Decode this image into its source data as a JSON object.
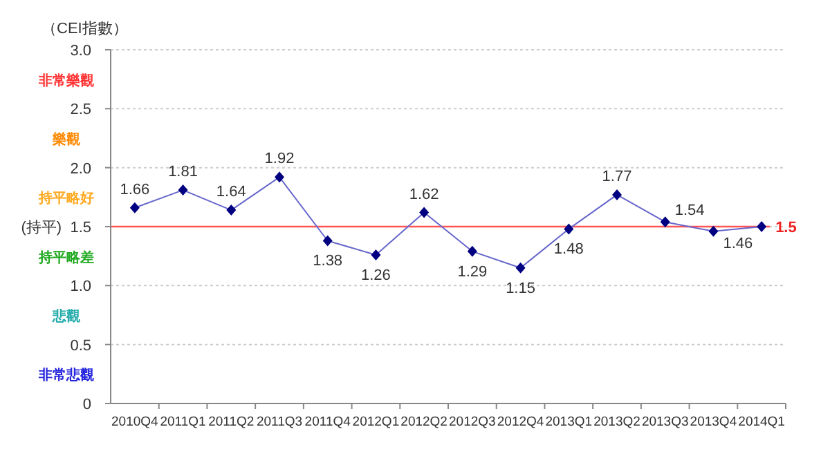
{
  "chart_data": {
    "type": "line",
    "ylabel": "（CEI指數）",
    "categories": [
      "2010Q4",
      "2011Q1",
      "2011Q2",
      "2011Q3",
      "2011Q4",
      "2012Q1",
      "2012Q2",
      "2012Q3",
      "2012Q4",
      "2013Q1",
      "2013Q2",
      "2013Q3",
      "2013Q4",
      "2014Q1"
    ],
    "series": [
      {
        "color": "#6666cc",
        "values": [
          1.66,
          1.81,
          1.64,
          1.92,
          1.38,
          1.26,
          1.62,
          1.29,
          1.15,
          1.48,
          1.77,
          1.54,
          1.46,
          1.5
        ]
      }
    ],
    "ylim": [
      0,
      3
    ],
    "yticks": [
      0,
      0.5,
      {
        "value": 1,
        "label": "1.0"
      },
      {
        "value": 1.5,
        "label": "(持平)  1.5"
      },
      {
        "value": 2,
        "label": "2.0"
      },
      2.5,
      {
        "value": 3,
        "label": "3.0"
      }
    ],
    "ref_lines": [
      {
        "axis": "y",
        "value": 1.5,
        "color": "#ff5555"
      }
    ],
    "annotations": [
      "非常樂觀",
      "樂觀",
      "持平略好",
      "持平略差",
      "悲觀",
      "非常悲觀"
    ],
    "grid": "y",
    "marker": "diamond",
    "line_style": "solid",
    "data_labels": true
  }
}
